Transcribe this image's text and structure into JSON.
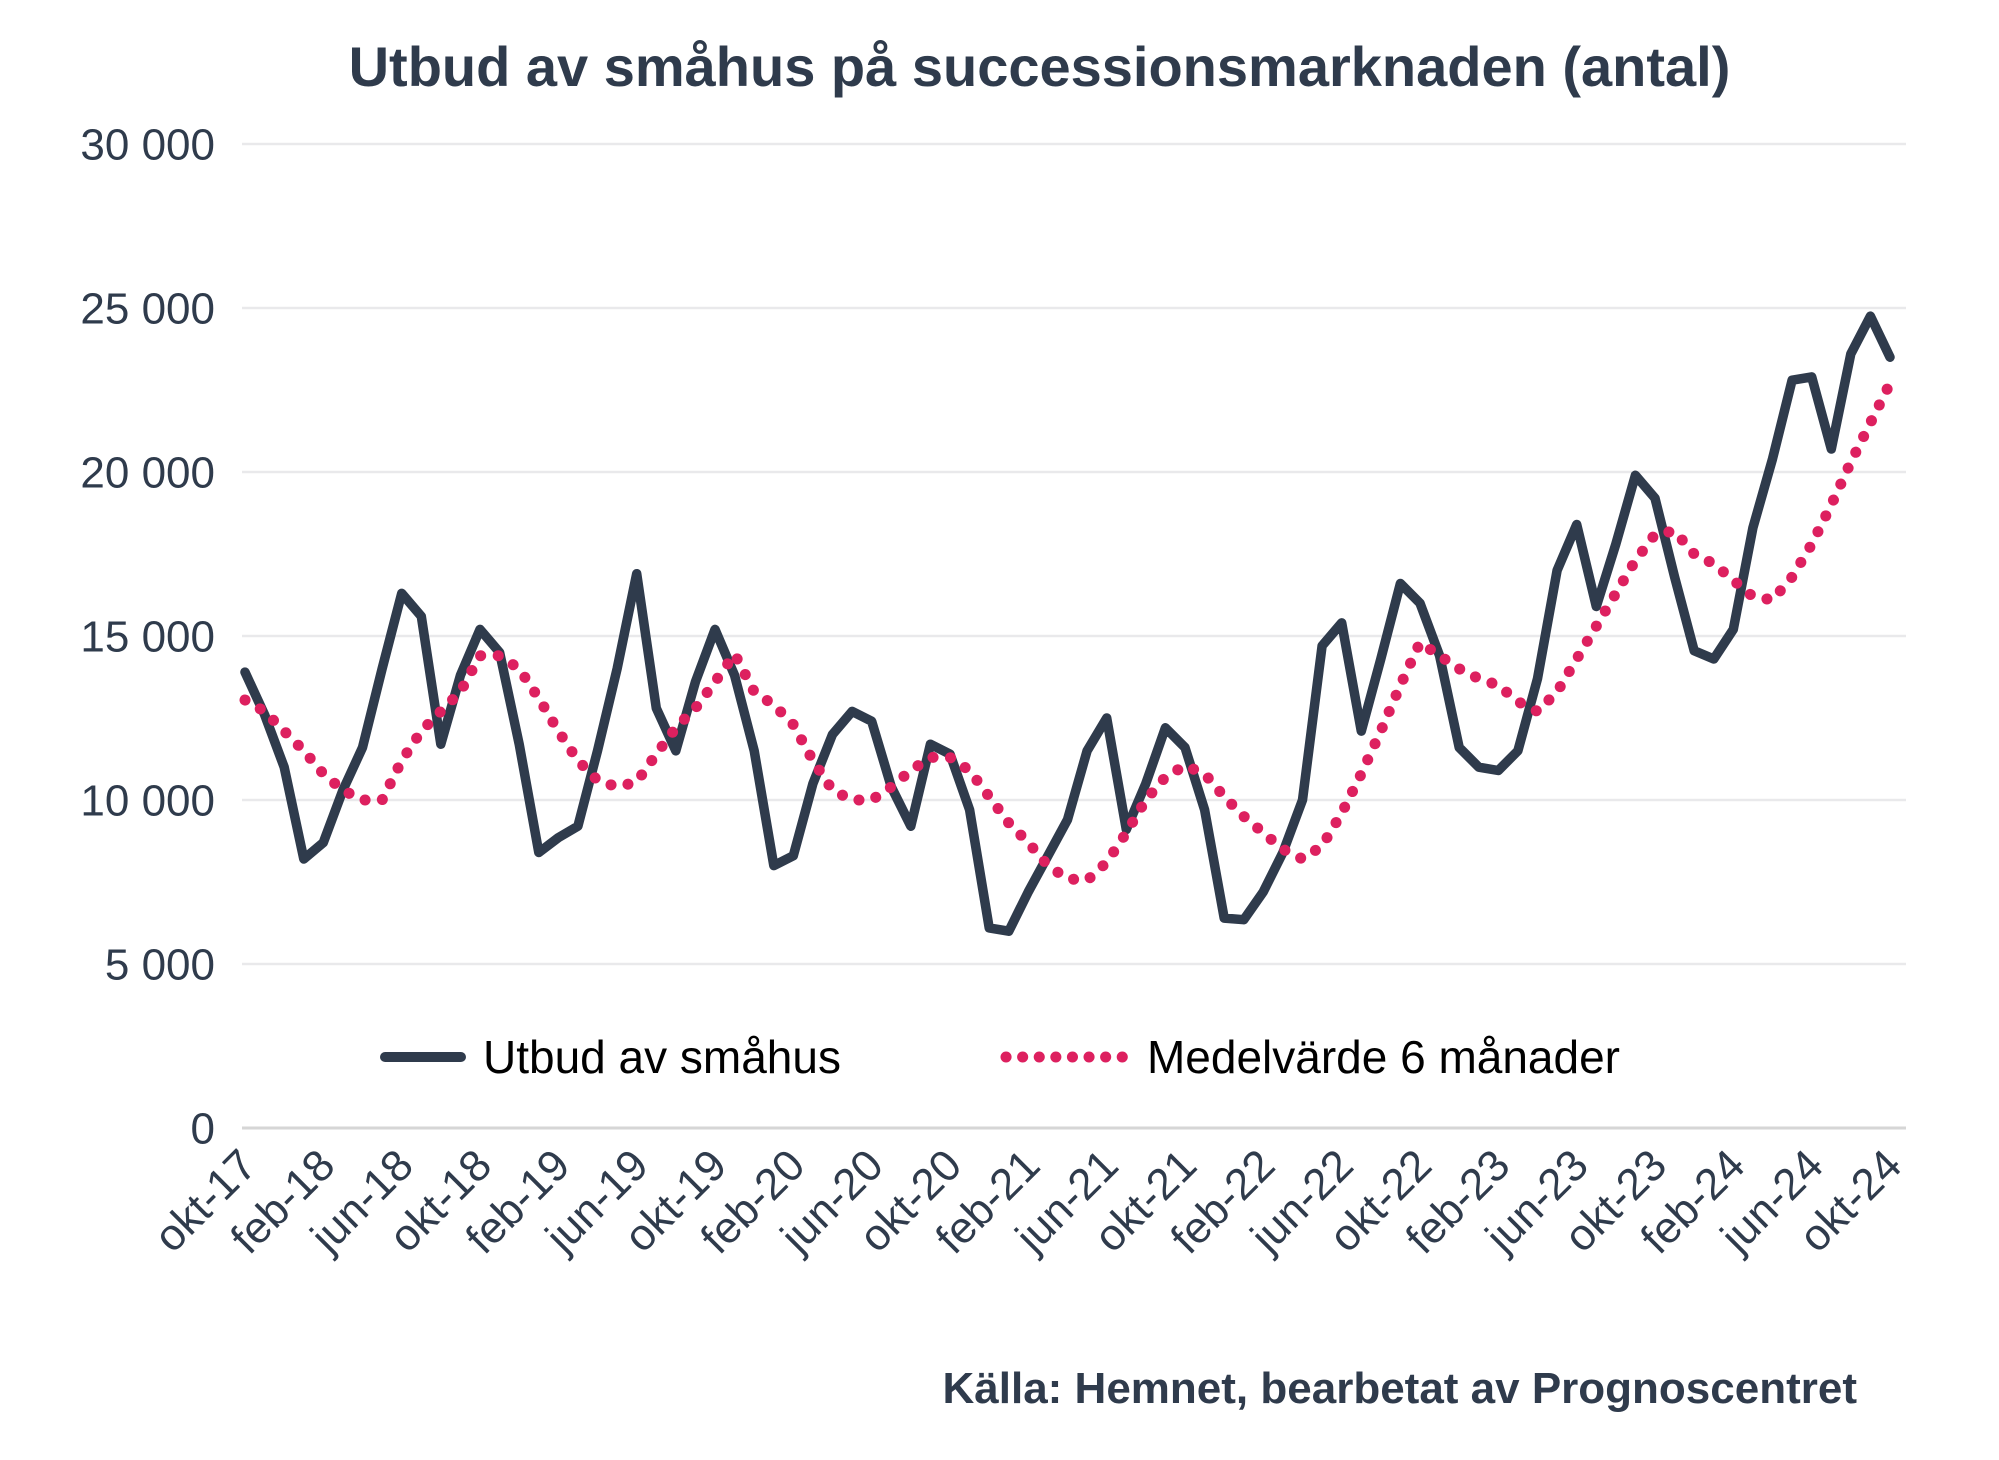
{
  "title": "Utbud av småhus på successionsmarknaden (antal)",
  "source": "Källa: Hemnet, bearbetat av Prognoscentret",
  "colors": {
    "text": "#2f3b4c",
    "line": "#2f3b4c",
    "ma": "#dd205f",
    "grid": "#e9e9eb",
    "zero_line": "#d6d6d6",
    "background": "#ffffff"
  },
  "legend": [
    {
      "label": "Utbud av småhus",
      "style": "solid"
    },
    {
      "label": "Medelvärde 6 månader",
      "style": "dotted"
    }
  ],
  "chart_data": {
    "type": "line",
    "title": "Utbud av småhus på successionsmarknaden (antal)",
    "xlabel": "",
    "ylabel": "",
    "ylim": [
      0,
      30000
    ],
    "y_ticks": [
      0,
      5000,
      10000,
      15000,
      20000,
      25000,
      30000
    ],
    "y_tick_labels": [
      "0",
      "5 000",
      "10 000",
      "15 000",
      "20 000",
      "25 000",
      "30 000"
    ],
    "grid": "horizontal",
    "legend_position": "bottom",
    "frequency": "monthly",
    "start_month": "okt-17",
    "end_month": "okt-24",
    "x_tick_every": 4,
    "x_tick_labels": [
      "okt-17",
      "feb-18",
      "jun-18",
      "okt-18",
      "feb-19",
      "jun-19",
      "okt-19",
      "feb-20",
      "jun-20",
      "okt-20",
      "feb-21",
      "jun-21",
      "okt-21",
      "feb-22",
      "jun-22",
      "okt-22",
      "feb-23",
      "jun-23",
      "okt-23",
      "feb-24",
      "jun-24",
      "okt-24"
    ],
    "x": [
      "okt-17",
      "nov-17",
      "dec-17",
      "jan-18",
      "feb-18",
      "mar-18",
      "apr-18",
      "maj-18",
      "jun-18",
      "jul-18",
      "aug-18",
      "sep-18",
      "okt-18",
      "nov-18",
      "dec-18",
      "jan-19",
      "feb-19",
      "mar-19",
      "apr-19",
      "maj-19",
      "jun-19",
      "jul-19",
      "aug-19",
      "sep-19",
      "okt-19",
      "nov-19",
      "dec-19",
      "jan-20",
      "feb-20",
      "mar-20",
      "apr-20",
      "maj-20",
      "jun-20",
      "jul-20",
      "aug-20",
      "sep-20",
      "okt-20",
      "nov-20",
      "dec-20",
      "jan-21",
      "feb-21",
      "mar-21",
      "apr-21",
      "maj-21",
      "jun-21",
      "jul-21",
      "aug-21",
      "sep-21",
      "okt-21",
      "nov-21",
      "dec-21",
      "jan-22",
      "feb-22",
      "mar-22",
      "apr-22",
      "maj-22",
      "jun-22",
      "jul-22",
      "aug-22",
      "sep-22",
      "okt-22",
      "nov-22",
      "dec-22",
      "jan-23",
      "feb-23",
      "mar-23",
      "apr-23",
      "maj-23",
      "jun-23",
      "jul-23",
      "aug-23",
      "sep-23",
      "okt-23",
      "nov-23",
      "dec-23",
      "jan-24",
      "feb-24",
      "mar-24",
      "apr-24",
      "maj-24",
      "jun-24",
      "jul-24",
      "aug-24",
      "sep-24",
      "okt-24"
    ],
    "series": [
      {
        "name": "Utbud av småhus",
        "style": "solid",
        "color": "#2f3b4c",
        "values": [
          13900,
          12600,
          11000,
          8200,
          8700,
          10300,
          11600,
          14000,
          16300,
          15600,
          11700,
          13800,
          15200,
          14500,
          11700,
          8400,
          8850,
          9200,
          11500,
          14000,
          16900,
          12800,
          11500,
          13600,
          15200,
          13800,
          11500,
          8000,
          8300,
          10500,
          12000,
          12700,
          12400,
          10400,
          9200,
          11700,
          11400,
          9700,
          6100,
          6000,
          7200,
          8300,
          9400,
          11500,
          12500,
          9100,
          10500,
          12200,
          11600,
          9700,
          6400,
          6350,
          7200,
          8400,
          10000,
          14700,
          15400,
          12100,
          14300,
          16600,
          16000,
          14400,
          11600,
          11000,
          10900,
          11500,
          13700,
          17000,
          18400,
          15900,
          17800,
          19900,
          19200,
          16800,
          14550,
          14300,
          15200,
          18300,
          20400,
          22800,
          22900,
          20700,
          23600,
          24750,
          23500
        ]
      },
      {
        "name": "Medelvärde 6 månader",
        "style": "dotted",
        "color": "#dd205f",
        "values": [
          13050,
          12700,
          12100,
          11500,
          10800,
          10300,
          10000,
          10000,
          11200,
          12100,
          12700,
          13300,
          14400,
          14400,
          14000,
          13100,
          12100,
          11200,
          10600,
          10400,
          10550,
          11400,
          12200,
          12800,
          13600,
          14450,
          13300,
          12900,
          12300,
          11200,
          10300,
          10000,
          10000,
          10400,
          10900,
          11300,
          11300,
          10900,
          10100,
          9300,
          8700,
          8000,
          7600,
          7550,
          8100,
          9000,
          10000,
          10700,
          11050,
          10800,
          10100,
          9500,
          9000,
          8500,
          8200,
          8600,
          9600,
          10800,
          12100,
          13500,
          14800,
          14400,
          14000,
          13700,
          13500,
          13000,
          12700,
          13300,
          14300,
          15300,
          16300,
          17300,
          18100,
          18200,
          17500,
          17200,
          16700,
          16200,
          16100,
          16800,
          17800,
          19000,
          20300,
          21500,
          22700
        ]
      }
    ]
  }
}
